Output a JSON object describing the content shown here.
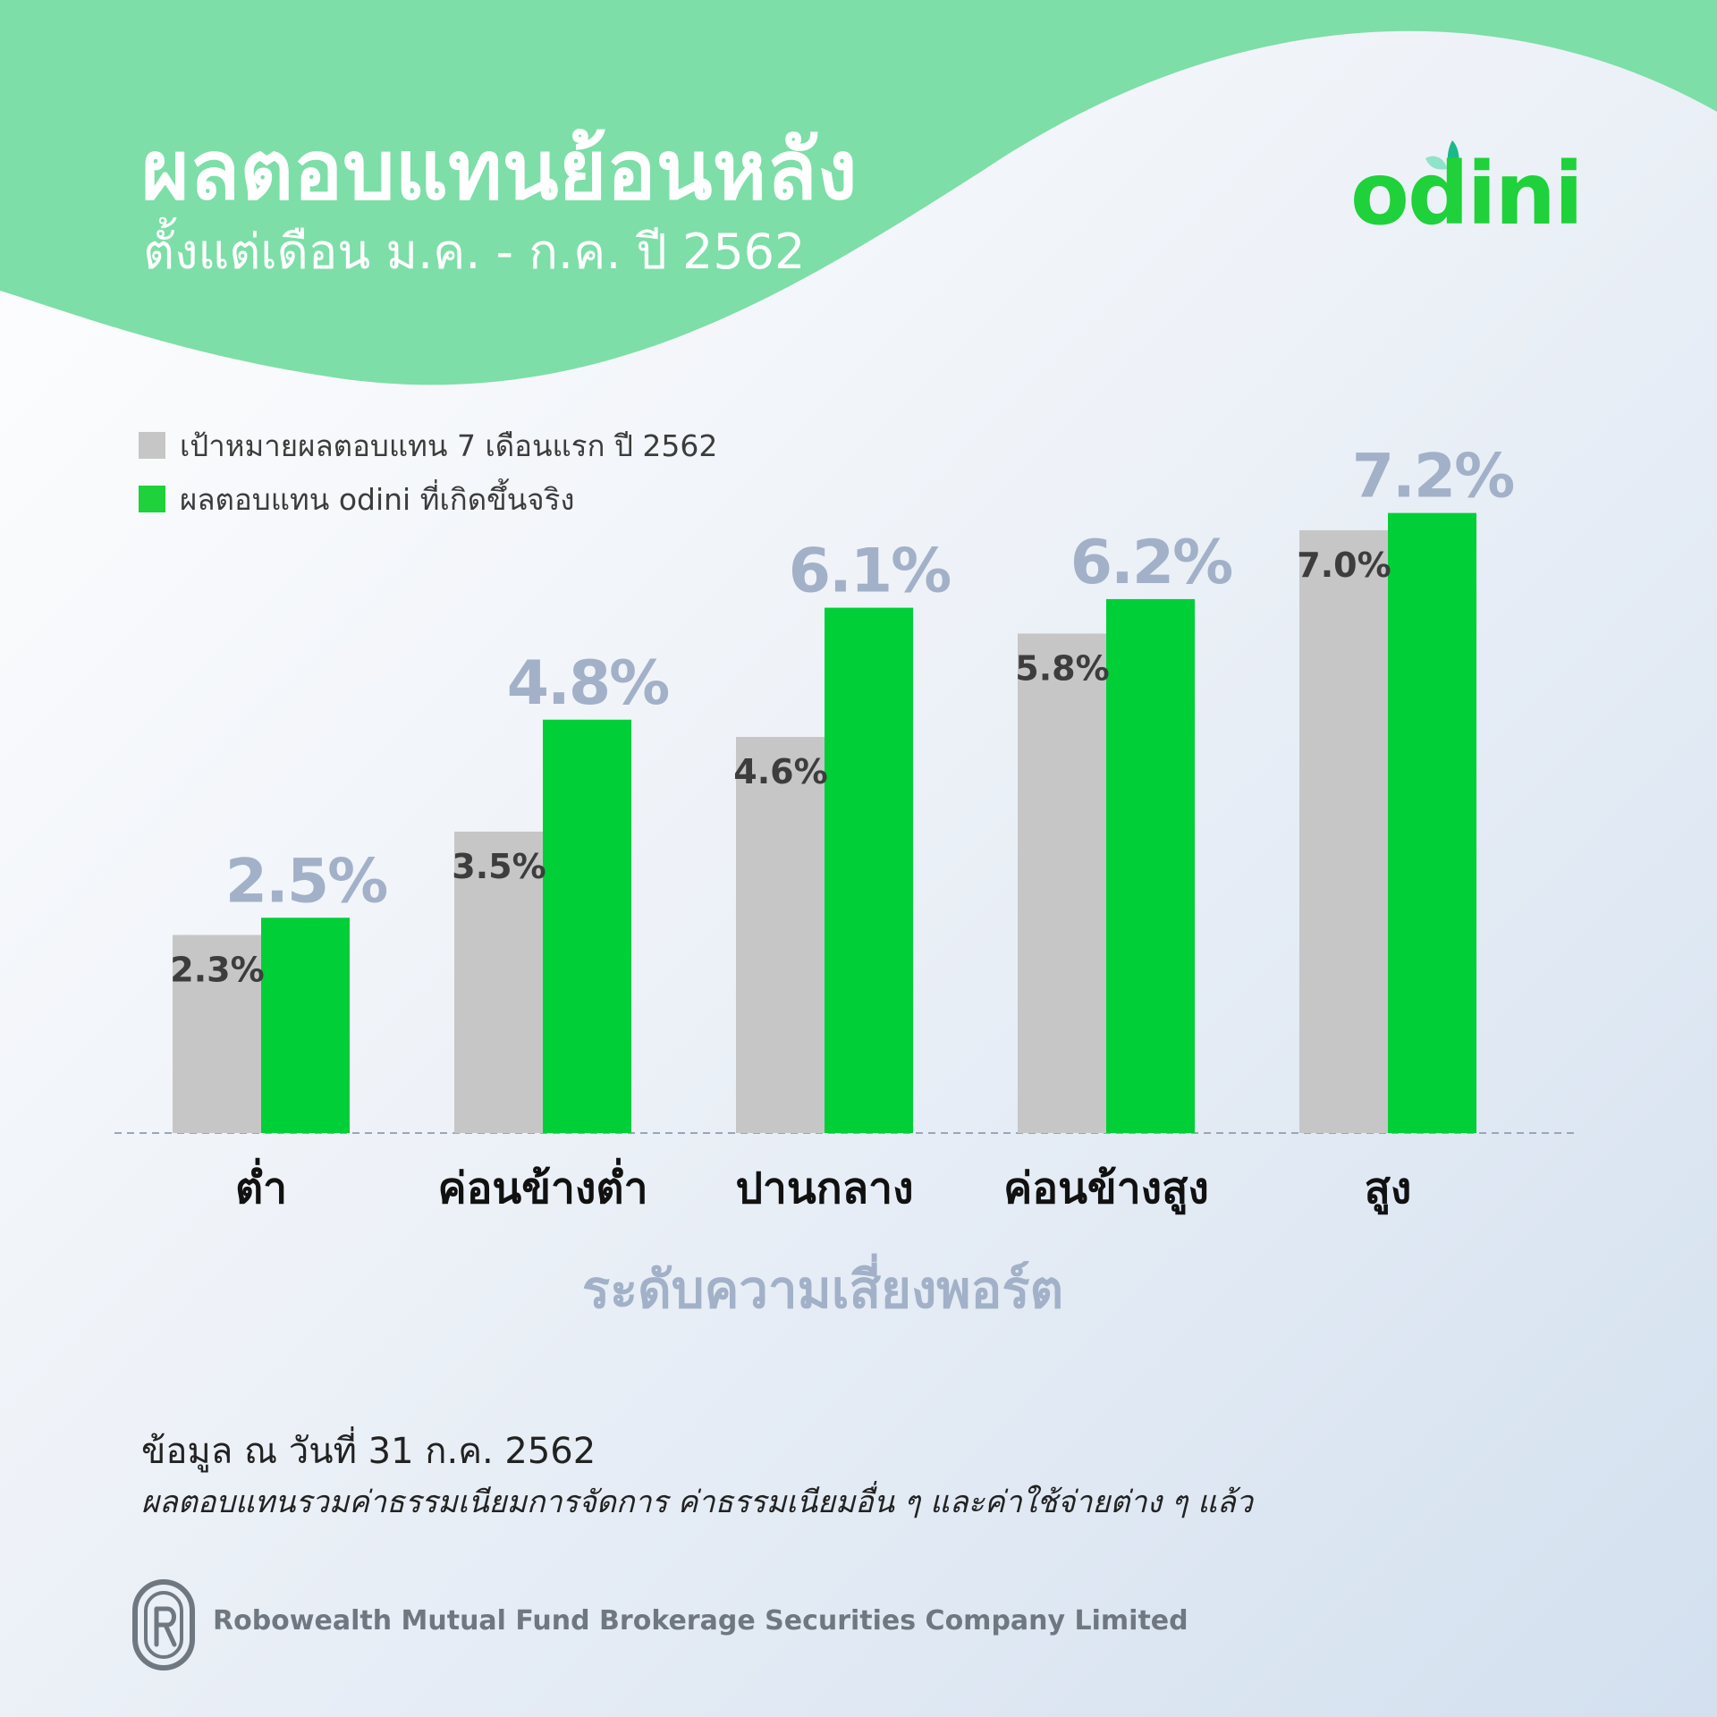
{
  "header": {
    "title": "ผลตอบแทนย้อนหลัง",
    "subtitle": "ตั้งแต่เดือน ม.ค. - ก.ค. ปี 2562"
  },
  "brand": {
    "logo_text": "odini",
    "color": "#1fd13a",
    "wave_color": "#7ddea8"
  },
  "legend": [
    {
      "label": "เป้าหมายผลตอบแทน 7 เดือนแรก ปี 2562",
      "color": "#c6c6c6"
    },
    {
      "label": "ผลตอบแทน odini ที่เกิดขึ้นจริง",
      "color": "#1fd13a"
    }
  ],
  "chart_data": {
    "type": "bar",
    "categories": [
      "ต่ำ",
      "ค่อนข้างต่ำ",
      "ปานกลาง",
      "ค่อนข้างสูง",
      "สูง"
    ],
    "series": [
      {
        "name": "เป้าหมายผลตอบแทน 7 เดือนแรก ปี 2562",
        "values": [
          2.3,
          3.5,
          4.6,
          5.8,
          7.0
        ],
        "labels": [
          "2.3%",
          "3.5%",
          "4.6%",
          "5.8%",
          "7.0%"
        ],
        "color": "#c6c6c6",
        "label_color": "#3d3d3d"
      },
      {
        "name": "ผลตอบแทน odini ที่เกิดขึ้นจริง",
        "values": [
          2.5,
          4.8,
          6.1,
          6.2,
          7.2
        ],
        "labels": [
          "2.5%",
          "4.8%",
          "6.1%",
          "6.2%",
          "7.2%"
        ],
        "color": "#00cf38",
        "label_color": "#a2b1c8"
      }
    ],
    "xlabel": "ระดับความเสี่ยงพอร์ต",
    "ylabel": "",
    "ylim": [
      0,
      7.2
    ],
    "grid": false,
    "legend_position": "top-left"
  },
  "notes": {
    "data_date": "ข้อมูล ณ วันที่ 31 ก.ค. 2562",
    "fee_note": "ผลตอบแทนรวมค่าธรรมเนียมการจัดการ ค่าธรรมเนียมอื่น ๆ และค่าใช้จ่ายต่าง ๆ แล้ว"
  },
  "footer": {
    "company": "Robowealth Mutual Fund Brokerage Securities Company Limited"
  }
}
